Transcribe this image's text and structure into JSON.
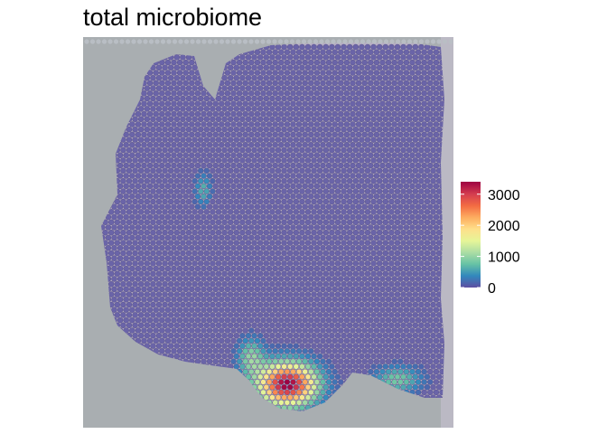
{
  "chart_data": {
    "type": "heatmap",
    "title": "total microbiome",
    "xlabel": "",
    "ylabel": "",
    "legend": {
      "position": "right",
      "ticks": [
        0,
        1000,
        2000,
        3000
      ],
      "tick_labels": [
        "0",
        "1000",
        "2000",
        "3000"
      ],
      "range": [
        0,
        3400
      ],
      "colors": [
        "#5e4fa2",
        "#3288bd",
        "#66c2a5",
        "#abdda4",
        "#e6f598",
        "#fee08b",
        "#fdae61",
        "#f46d43",
        "#d53e4f",
        "#9e0142"
      ]
    },
    "background_color": "#a7acb0",
    "spot_baseline_color": "#6a64a8",
    "hotspots": [
      {
        "region": "bottom-center lobe",
        "peak": 3400
      },
      {
        "region": "bottom-left edge",
        "peak": 900
      },
      {
        "region": "bottom-right edge",
        "peak": 800
      },
      {
        "region": "left mid edge",
        "peak": 600
      }
    ]
  }
}
